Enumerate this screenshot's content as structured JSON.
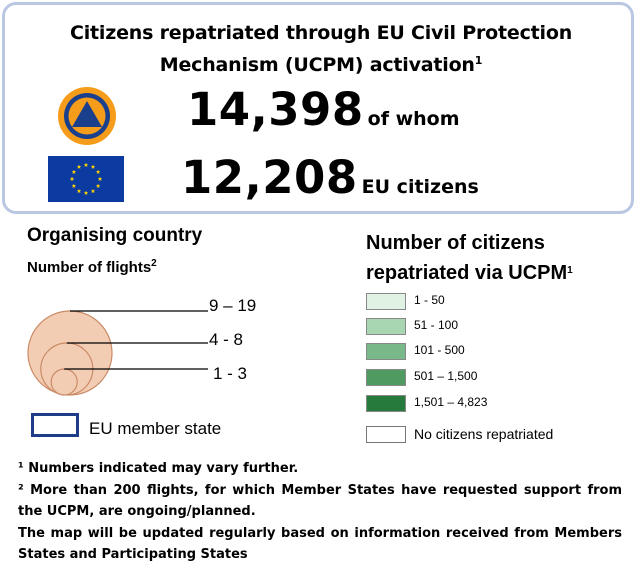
{
  "header": {
    "title_line1": "Citizens repatriated through EU Civil Protection",
    "title_line2": "Mechanism (UCPM) activation",
    "title_note": "1",
    "total_value": "14,398",
    "total_suffix": "of whom",
    "eu_value": "12,208",
    "eu_suffix": "EU citizens",
    "emblem_icon": "civil-protection-emblem",
    "flag_icon": "eu-flag"
  },
  "organising": {
    "heading": "Organising country",
    "subheading": "Number of flights",
    "subheading_note": "2",
    "ranges": [
      "9 – 19",
      "4 - 8",
      "1 - 3"
    ],
    "circle_fill": "#f3cdb3",
    "circle_stroke": "#c98a66"
  },
  "eu_member": {
    "label": "EU member state",
    "color": "#1f3c88"
  },
  "citizens_legend": {
    "heading_line1": "Number of citizens",
    "heading_line2": "repatriated via UCPM",
    "heading_note": "1",
    "items": [
      {
        "label": "1 - 50",
        "color": "#dff2e4"
      },
      {
        "label": "51 - 100",
        "color": "#a8d5b2"
      },
      {
        "label": "101 - 500",
        "color": "#79b889"
      },
      {
        "label": "501 – 1,500",
        "color": "#4e9a60"
      },
      {
        "label": "1,501 – 4,823",
        "color": "#267a3c"
      }
    ],
    "none_label": "No citizens repatriated"
  },
  "notes": {
    "note1": "¹ Numbers indicated may vary further.",
    "note2": "² More than 200 flights, for which Member States have requested support from the UCPM, are ongoing/planned.",
    "note3": "The map will be updated regularly based on information received from Members States and Participating States"
  }
}
